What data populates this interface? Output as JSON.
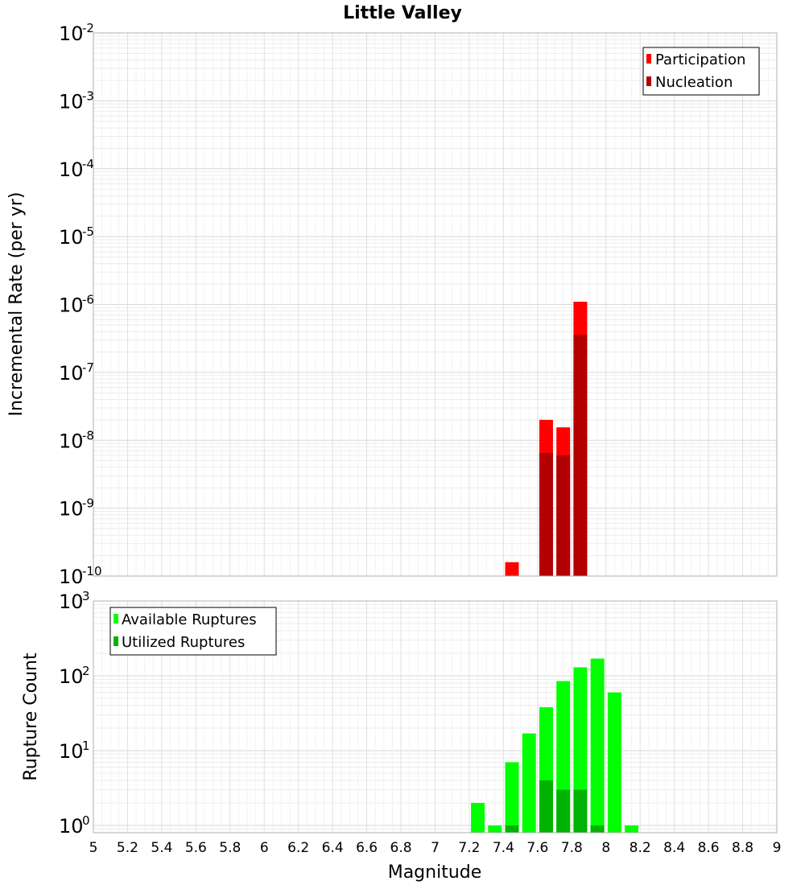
{
  "chart_data": [
    {
      "type": "bar",
      "title": "Little Valley",
      "xlabel": "",
      "ylabel": "Incremental Rate (per yr)",
      "yscale": "log",
      "ylim": [
        1e-10,
        0.01
      ],
      "xlim": [
        5,
        9
      ],
      "grid": true,
      "legend_position": "top-right",
      "bar_width": 0.08,
      "x_ticks": [
        "5",
        "5.2",
        "5.4",
        "5.6",
        "5.8",
        "6",
        "6.2",
        "6.4",
        "6.6",
        "6.8",
        "7",
        "7.2",
        "7.4",
        "7.6",
        "7.8",
        "8",
        "8.2",
        "8.4",
        "8.6",
        "8.8",
        "9"
      ],
      "y_tick_exponents": [
        "-2",
        "-3",
        "-4",
        "-5",
        "-6",
        "-7",
        "-8",
        "-9",
        "-10"
      ],
      "series": [
        {
          "name": "Participation",
          "color": "#ff0000",
          "points": [
            {
              "x": 7.45,
              "y": 1.6e-10
            },
            {
              "x": 7.65,
              "y": 2e-08
            },
            {
              "x": 7.75,
              "y": 1.55e-08
            },
            {
              "x": 7.85,
              "y": 1.1e-06
            }
          ]
        },
        {
          "name": "Nucleation",
          "color": "#b30000",
          "points": [
            {
              "x": 7.65,
              "y": 6.5e-09
            },
            {
              "x": 7.75,
              "y": 6e-09
            },
            {
              "x": 7.85,
              "y": 3.6e-07
            }
          ]
        }
      ]
    },
    {
      "type": "bar",
      "title": "",
      "xlabel": "Magnitude",
      "ylabel": "Rupture Count",
      "yscale": "log",
      "ylim": [
        0.8,
        1000
      ],
      "xlim": [
        5,
        9
      ],
      "grid": true,
      "legend_position": "top-left",
      "bar_width": 0.08,
      "x_ticks": [
        "5",
        "5.2",
        "5.4",
        "5.6",
        "5.8",
        "6",
        "6.2",
        "6.4",
        "6.6",
        "6.8",
        "7",
        "7.2",
        "7.4",
        "7.6",
        "7.8",
        "8",
        "8.2",
        "8.4",
        "8.6",
        "8.8",
        "9"
      ],
      "y_tick_exponents": [
        "3",
        "2",
        "1",
        "0"
      ],
      "series": [
        {
          "name": "Available Ruptures",
          "color": "#00ff00",
          "points": [
            {
              "x": 7.25,
              "y": 2
            },
            {
              "x": 7.35,
              "y": 1
            },
            {
              "x": 7.45,
              "y": 7
            },
            {
              "x": 7.55,
              "y": 17
            },
            {
              "x": 7.65,
              "y": 38
            },
            {
              "x": 7.75,
              "y": 85
            },
            {
              "x": 7.85,
              "y": 130
            },
            {
              "x": 7.95,
              "y": 170
            },
            {
              "x": 8.05,
              "y": 60
            },
            {
              "x": 8.15,
              "y": 1
            }
          ]
        },
        {
          "name": "Utilized Ruptures",
          "color": "#00b300",
          "points": [
            {
              "x": 7.45,
              "y": 1
            },
            {
              "x": 7.65,
              "y": 4
            },
            {
              "x": 7.75,
              "y": 3
            },
            {
              "x": 7.85,
              "y": 3
            },
            {
              "x": 7.95,
              "y": 1
            }
          ]
        }
      ]
    }
  ]
}
